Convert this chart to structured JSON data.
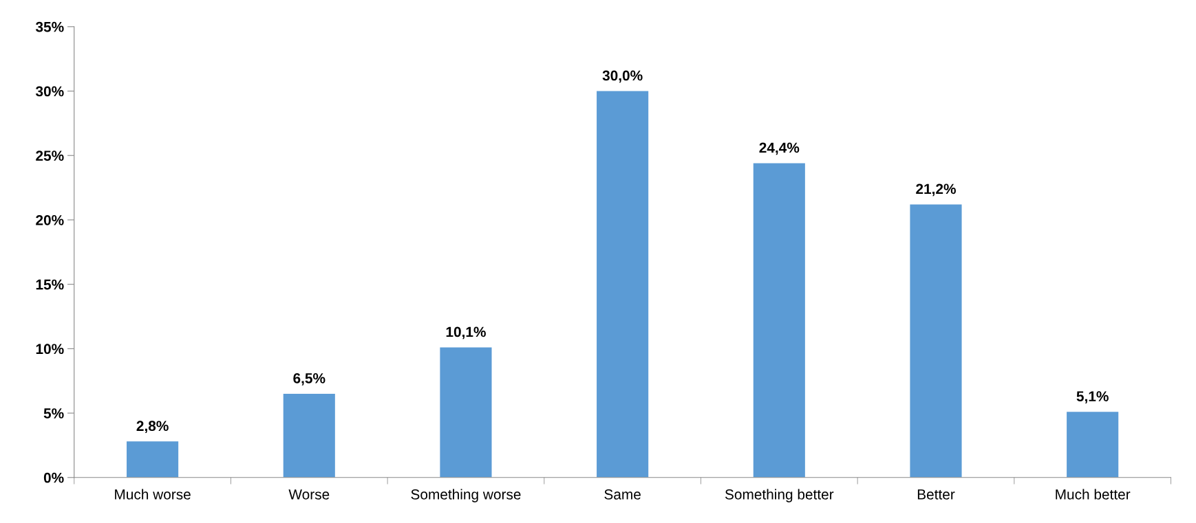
{
  "chart_data": {
    "type": "bar",
    "categories": [
      "Much worse",
      "Worse",
      "Something worse",
      "Same",
      "Something better",
      "Better",
      "Much better"
    ],
    "values": [
      2.8,
      6.5,
      10.1,
      30.0,
      24.4,
      21.2,
      5.1
    ],
    "value_labels": [
      "2,8%",
      "6,5%",
      "10,1%",
      "30,0%",
      "24,4%",
      "21,2%",
      "5,1%"
    ],
    "color": "#5b9bd5",
    "ylim": [
      0,
      35
    ],
    "yticks": [
      {
        "value": 0,
        "label": "0%"
      },
      {
        "value": 5,
        "label": "5%"
      },
      {
        "value": 10,
        "label": "10%"
      },
      {
        "value": 15,
        "label": "15%"
      },
      {
        "value": 20,
        "label": "20%"
      },
      {
        "value": 25,
        "label": "25%"
      },
      {
        "value": 30,
        "label": "30%"
      },
      {
        "value": 35,
        "label": "35%"
      }
    ],
    "grid": false,
    "legend": false
  }
}
